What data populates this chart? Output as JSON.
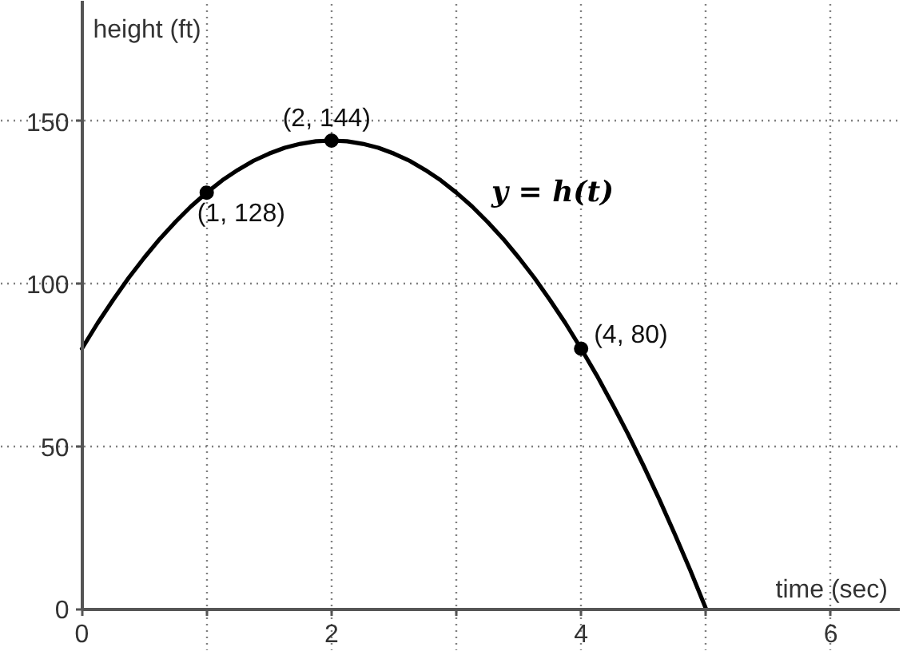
{
  "chart_data": {
    "type": "line",
    "xlabel": "time (sec)",
    "ylabel": "height (ft)",
    "xlim": [
      -0.65,
      6.56
    ],
    "ylim": [
      -13,
      187
    ],
    "xticks": [
      0,
      {
        "value": 1,
        "label": null
      },
      2,
      {
        "value": 3,
        "label": null
      },
      4,
      {
        "value": 5,
        "label": null
      },
      6
    ],
    "yticks": [
      0,
      50,
      100,
      150
    ],
    "grid": true,
    "series": [
      {
        "name": "y = h(t)",
        "color": "#000000",
        "line_style": "solid",
        "x": [
          0,
          0.125,
          0.25,
          0.375,
          0.5,
          0.625,
          0.75,
          0.875,
          1,
          1.125,
          1.25,
          1.375,
          1.5,
          1.625,
          1.75,
          1.875,
          2,
          2.125,
          2.25,
          2.375,
          2.5,
          2.625,
          2.75,
          2.875,
          3,
          3.125,
          3.25,
          3.375,
          3.5,
          3.625,
          3.75,
          3.875,
          4,
          4.125,
          4.25,
          4.375,
          4.5,
          4.625,
          4.75,
          4.875,
          5
        ],
        "values": [
          80,
          87.8,
          95,
          101.8,
          108,
          113.8,
          119,
          123.8,
          128,
          131.8,
          135,
          137.8,
          140,
          141.8,
          143,
          143.8,
          144,
          143.8,
          143,
          141.8,
          140,
          137.8,
          135,
          131.8,
          128,
          123.8,
          119,
          113.8,
          108,
          101.8,
          95,
          87.8,
          80,
          71.8,
          63,
          53.8,
          44,
          33.8,
          23,
          11.8,
          0
        ]
      },
      {
        "type": "scatter",
        "color": "#000000",
        "marker": "circle",
        "x": [
          1,
          2,
          4
        ],
        "values": [
          128,
          144,
          80
        ]
      }
    ],
    "annotations": [
      {
        "text": "(1, 128)",
        "x": 1,
        "y": 128
      },
      {
        "text": "(2, 144)",
        "x": 2,
        "y": 144
      },
      {
        "text": "(4, 80)",
        "x": 4,
        "y": 80
      }
    ]
  }
}
